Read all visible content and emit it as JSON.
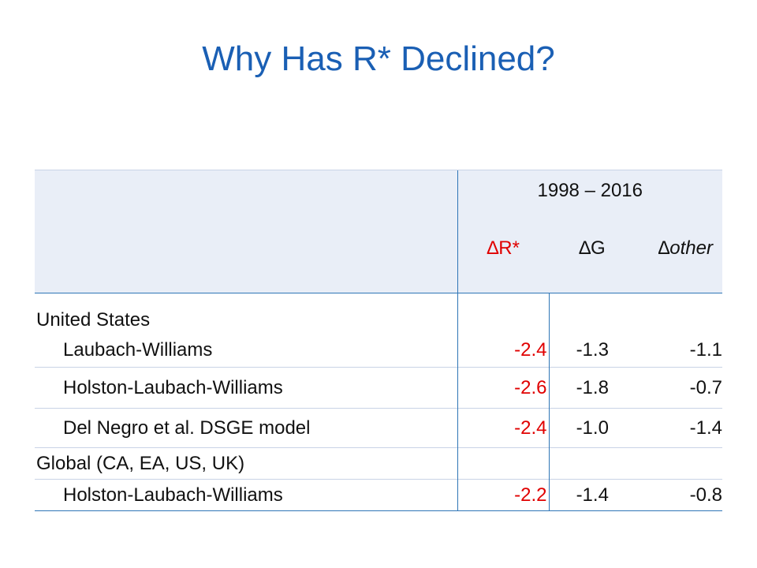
{
  "title": "Why Has R* Declined?",
  "table": {
    "period": "1998 – 2016",
    "columns": [
      "∆R*",
      "∆G",
      "∆other"
    ],
    "groups": [
      {
        "name": "United States",
        "rows": [
          {
            "label": "Laubach-Williams",
            "values": [
              "-2.4",
              "-1.3",
              "-1.1"
            ]
          },
          {
            "label": "Holston-Laubach-Williams",
            "values": [
              "-2.6",
              "-1.8",
              "-0.7"
            ]
          },
          {
            "label": "Del Negro et al. DSGE model",
            "values": [
              "-2.4",
              "-1.0",
              "-1.4"
            ]
          }
        ]
      },
      {
        "name": "Global (CA, EA, US, UK)",
        "rows": [
          {
            "label": "Holston-Laubach-Williams",
            "values": [
              "-2.2",
              "-1.4",
              "-0.8"
            ]
          }
        ]
      }
    ],
    "colors": {
      "header_bg": "#e9eef7",
      "accent_red": "#e00000",
      "title_blue": "#1a5fb4",
      "rule_blue": "#2e75b6"
    }
  }
}
